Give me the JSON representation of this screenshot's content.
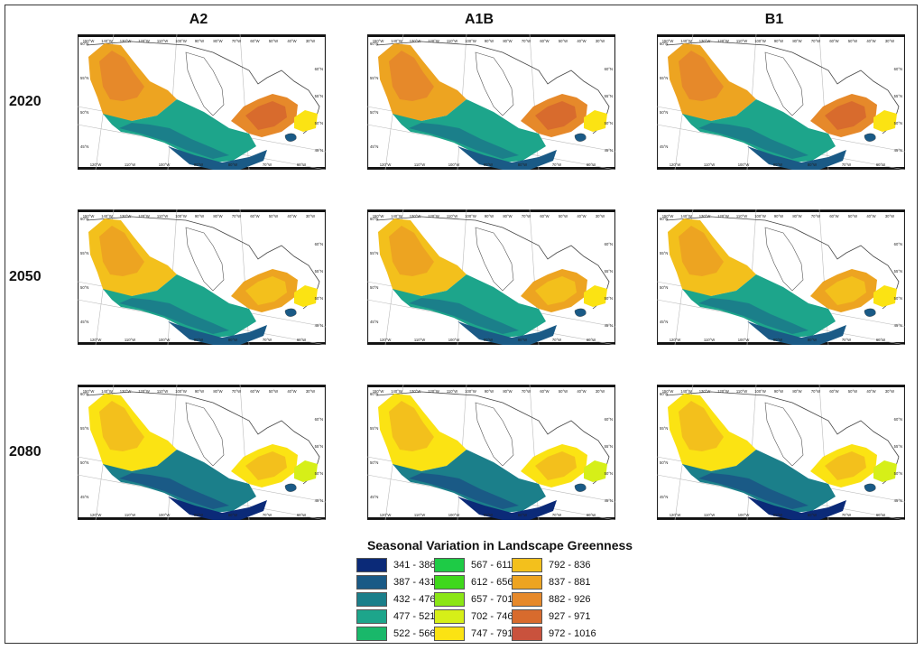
{
  "figure": {
    "scenarios": [
      "A2",
      "A1B",
      "B1"
    ],
    "years": [
      "2020",
      "2050",
      "2080"
    ],
    "axis_labels": {
      "top": [
        "150°W",
        "140°W",
        "130°W",
        "120°W",
        "110°W",
        "100°W",
        "90°W",
        "80°W",
        "70°W",
        "60°W",
        "50°W",
        "40°W",
        "30°W"
      ],
      "bottom": [
        "120°W",
        "110°W",
        "100°W",
        "90°W",
        "80°W",
        "70°W",
        "60°W"
      ],
      "left": [
        "60°N",
        "55°N",
        "50°N",
        "45°N"
      ],
      "right": [
        "60°N",
        "55°N",
        "50°N",
        "45°N"
      ]
    }
  },
  "legend": {
    "title": "Seasonal Variation in Landscape Greenness",
    "classes": [
      {
        "label": "341 - 386",
        "color": "#0b2a78"
      },
      {
        "label": "387 - 431",
        "color": "#1a5a86"
      },
      {
        "label": "432 - 476",
        "color": "#1b7f8a"
      },
      {
        "label": "477 - 521",
        "color": "#1da58b"
      },
      {
        "label": "522 - 566",
        "color": "#19b86a"
      },
      {
        "label": "567 - 611",
        "color": "#1ecb46"
      },
      {
        "label": "612 - 656",
        "color": "#3fd81c"
      },
      {
        "label": "657 - 701",
        "color": "#8be616"
      },
      {
        "label": "702 - 746",
        "color": "#d6ef18"
      },
      {
        "label": "747 - 791",
        "color": "#fbe313"
      },
      {
        "label": "792 - 836",
        "color": "#f3c01c"
      },
      {
        "label": "837 - 881",
        "color": "#eda421"
      },
      {
        "label": "882 - 926",
        "color": "#e6892a"
      },
      {
        "label": "927 - 971",
        "color": "#d86b2d"
      },
      {
        "label": "972 - 1016",
        "color": "#c9523d"
      }
    ]
  }
}
